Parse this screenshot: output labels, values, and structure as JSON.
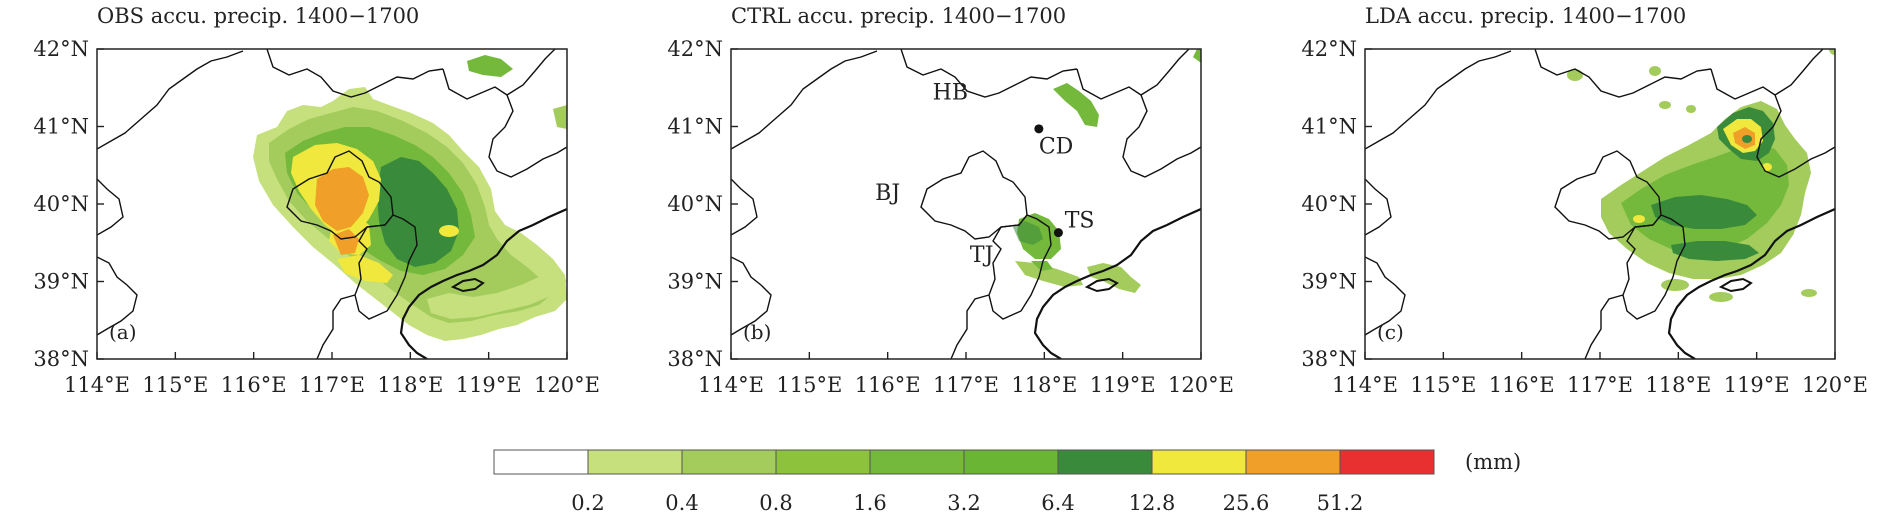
{
  "panels": [
    {
      "id": "a",
      "title": "OBS accu. precip. 1400−1700",
      "tag": "(a)",
      "x_ticks": [
        "114°E",
        "115°E",
        "116°E",
        "117°E",
        "118°E",
        "119°E",
        "120°E"
      ],
      "y_ticks": [
        "42°N",
        "41°N",
        "40°N",
        "39°N",
        "38°N"
      ],
      "labels": [],
      "cities": []
    },
    {
      "id": "b",
      "title": "CTRL accu. precip. 1400−1700",
      "tag": "(b)",
      "x_ticks": [
        "114°E",
        "115°E",
        "116°E",
        "117°E",
        "118°E",
        "119°E",
        "120°E"
      ],
      "y_ticks": [
        "42°N",
        "41°N",
        "40°N",
        "39°N",
        "38°N"
      ],
      "labels": [
        {
          "text": "HB",
          "lon": 116.8,
          "lat": 41.35
        },
        {
          "text": "BJ",
          "lon": 116.0,
          "lat": 40.05
        },
        {
          "text": "TJ",
          "lon": 117.2,
          "lat": 39.25
        }
      ],
      "cities": [
        {
          "text": "CD",
          "lon": 117.93,
          "lat": 40.97,
          "label_lon": 118.15,
          "label_lat": 40.65
        },
        {
          "text": "TS",
          "lon": 118.18,
          "lat": 39.63,
          "label_lon": 118.45,
          "label_lat": 39.7
        }
      ]
    },
    {
      "id": "c",
      "title": "LDA accu. precip. 1400−1700",
      "tag": "(c)",
      "x_ticks": [
        "114°E",
        "115°E",
        "116°E",
        "117°E",
        "118°E",
        "119°E",
        "120°E"
      ],
      "y_ticks": [
        "42°N",
        "41°N",
        "40°N",
        "39°N",
        "38°N"
      ],
      "labels": [],
      "cities": []
    }
  ],
  "colorbar": {
    "unit": "(mm)",
    "boundaries": [
      "0.2",
      "0.4",
      "0.8",
      "1.6",
      "3.2",
      "6.4",
      "12.8",
      "25.6",
      "51.2"
    ],
    "colors": [
      "#ffffff",
      "#c5e07c",
      "#a3cc5c",
      "#8cc23c",
      "#74b93c",
      "#6bb534",
      "#3a8a3c",
      "#f0e83c",
      "#f0a028",
      "#e83030"
    ]
  },
  "precip_colors": {
    "light1": "#c5e07c",
    "light2": "#a3cc5c",
    "mid1": "#8cc23c",
    "mid2": "#74b93c",
    "dark": "#3a8a3c",
    "yellow": "#f0e83c",
    "orange": "#f0a028",
    "red": "#e83030"
  }
}
